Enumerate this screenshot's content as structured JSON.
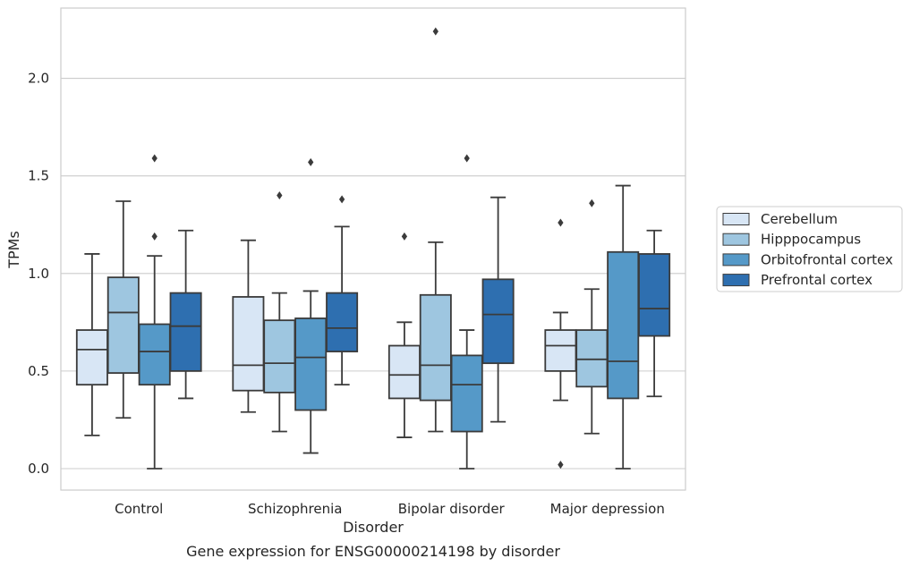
{
  "chart_data": {
    "type": "box",
    "categories": [
      "Control",
      "Schizophrenia",
      "Bipolar disorder",
      "Major depression"
    ],
    "xlabel": "Disorder",
    "ylabel": "TPMs",
    "caption": "Gene expression for ENSG00000214198 by disorder",
    "ylim": [
      -0.11,
      2.36
    ],
    "yticks": [
      "0.0",
      "0.5",
      "1.0",
      "1.5",
      "2.0"
    ],
    "grid": true,
    "legend_position": "right",
    "series": [
      {
        "name": "Cerebellum",
        "color": "#d8e6f5",
        "boxes": [
          {
            "min": 0.17,
            "q1": 0.43,
            "median": 0.61,
            "q3": 0.71,
            "max": 1.1,
            "outliers": []
          },
          {
            "min": 0.29,
            "q1": 0.4,
            "median": 0.53,
            "q3": 0.88,
            "max": 1.17,
            "outliers": []
          },
          {
            "min": 0.16,
            "q1": 0.36,
            "median": 0.48,
            "q3": 0.63,
            "max": 0.75,
            "outliers": [
              1.19
            ]
          },
          {
            "min": 0.35,
            "q1": 0.5,
            "median": 0.63,
            "q3": 0.71,
            "max": 0.8,
            "outliers": [
              1.26,
              0.02
            ]
          }
        ]
      },
      {
        "name": "Hipppocampus",
        "color": "#9ec6e0",
        "boxes": [
          {
            "min": 0.26,
            "q1": 0.49,
            "median": 0.8,
            "q3": 0.98,
            "max": 1.37,
            "outliers": []
          },
          {
            "min": 0.19,
            "q1": 0.39,
            "median": 0.54,
            "q3": 0.76,
            "max": 0.9,
            "outliers": [
              1.4
            ]
          },
          {
            "min": 0.19,
            "q1": 0.35,
            "median": 0.53,
            "q3": 0.89,
            "max": 1.16,
            "outliers": [
              2.24
            ]
          },
          {
            "min": 0.18,
            "q1": 0.42,
            "median": 0.56,
            "q3": 0.71,
            "max": 0.92,
            "outliers": [
              1.36
            ]
          }
        ]
      },
      {
        "name": "Orbitofrontal cortex",
        "color": "#5599c8",
        "boxes": [
          {
            "min": 0.0,
            "q1": 0.43,
            "median": 0.6,
            "q3": 0.74,
            "max": 1.09,
            "outliers": [
              1.19,
              1.59
            ]
          },
          {
            "min": 0.08,
            "q1": 0.3,
            "median": 0.57,
            "q3": 0.77,
            "max": 0.91,
            "outliers": [
              1.57
            ]
          },
          {
            "min": 0.0,
            "q1": 0.19,
            "median": 0.43,
            "q3": 0.58,
            "max": 0.71,
            "outliers": [
              1.59
            ]
          },
          {
            "min": 0.0,
            "q1": 0.36,
            "median": 0.55,
            "q3": 1.11,
            "max": 1.45,
            "outliers": []
          }
        ]
      },
      {
        "name": "Prefrontal cortex",
        "color": "#2e6fb0",
        "boxes": [
          {
            "min": 0.36,
            "q1": 0.5,
            "median": 0.73,
            "q3": 0.9,
            "max": 1.22,
            "outliers": []
          },
          {
            "min": 0.43,
            "q1": 0.6,
            "median": 0.72,
            "q3": 0.9,
            "max": 1.24,
            "outliers": [
              1.38
            ]
          },
          {
            "min": 0.24,
            "q1": 0.54,
            "median": 0.79,
            "q3": 0.97,
            "max": 1.39,
            "outliers": []
          },
          {
            "min": 0.37,
            "q1": 0.68,
            "median": 0.82,
            "q3": 1.1,
            "max": 1.22,
            "outliers": []
          }
        ]
      }
    ]
  }
}
